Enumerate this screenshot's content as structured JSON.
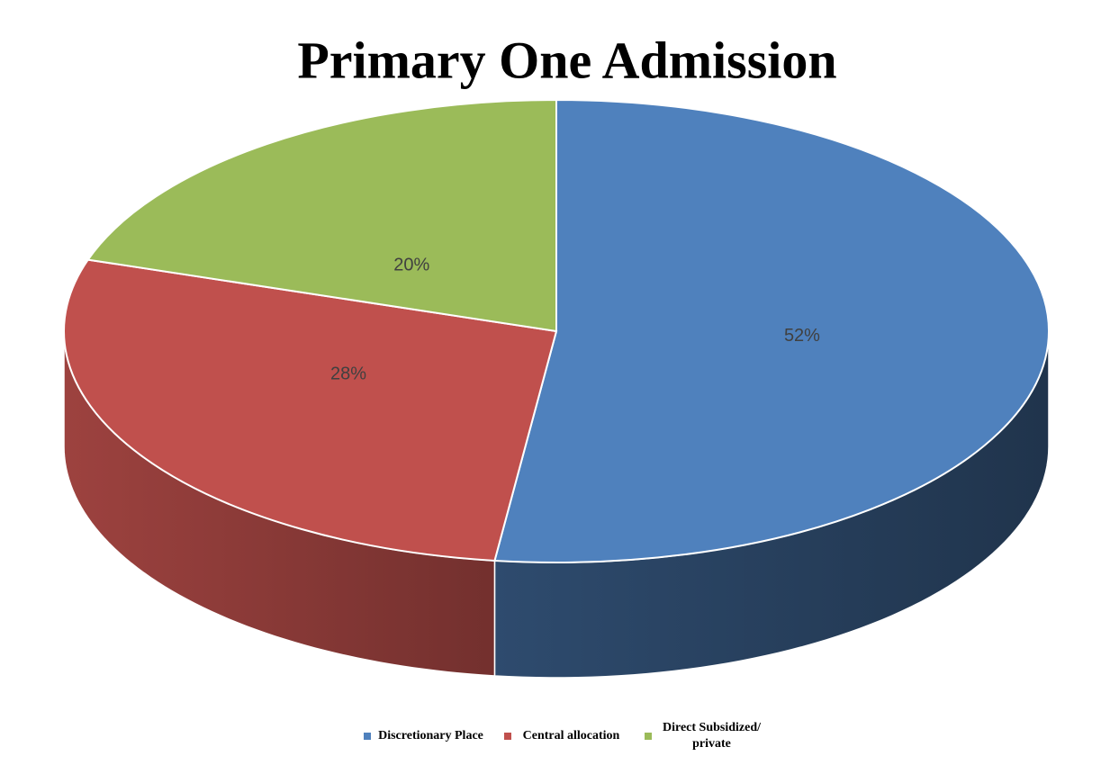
{
  "chart_data": {
    "type": "pie",
    "title": "Primary One Admission",
    "categories": [
      "Discretionary Place",
      "Central allocation",
      "Direct Subsidized/ private"
    ],
    "values": [
      52,
      28,
      20
    ],
    "value_labels": [
      "52%",
      "28%",
      "20%"
    ],
    "colors": [
      "#4f81bd",
      "#c0504d",
      "#9bbb59"
    ]
  }
}
